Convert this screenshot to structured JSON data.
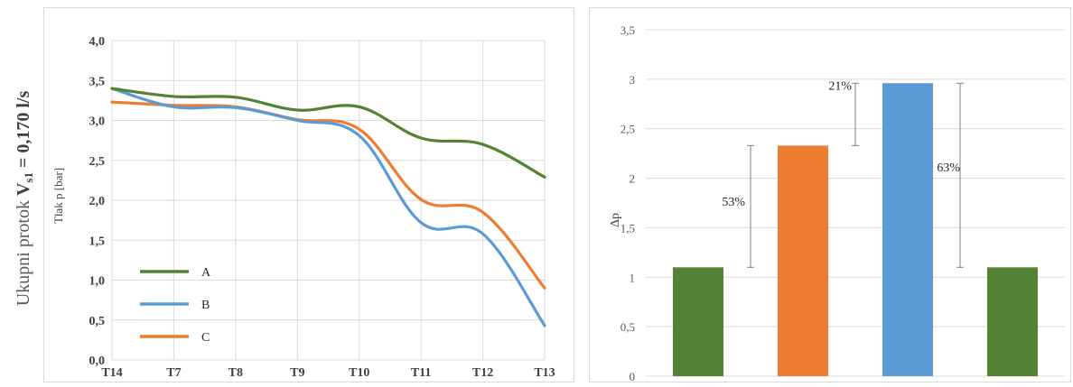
{
  "side_label": {
    "prefix": "Ukupni protok ",
    "symbol": "V",
    "subscript": "s1",
    "suffix": " = 0,170 l/s"
  },
  "colors": {
    "A": "#548235",
    "B": "#5b9bd5",
    "C": "#ed7d31",
    "grid": "#d9d9d9",
    "axis_text": "#404040",
    "bar_green": "#548235",
    "bar_orange": "#ed7d31",
    "bar_blue": "#5b9bd5"
  },
  "chart_data": [
    {
      "type": "line",
      "x": [
        "T14",
        "T7",
        "T8",
        "T9",
        "T10",
        "T11",
        "T12",
        "T13"
      ],
      "ylabel": "Tlak p [bar]",
      "ylim": [
        0,
        4
      ],
      "yticks": [
        "0,0",
        "0,5",
        "1,0",
        "1,5",
        "2,0",
        "2,5",
        "3,0",
        "3,5",
        "4,0"
      ],
      "grid": true,
      "legend_position": "bottom-left",
      "series": [
        {
          "name": "A",
          "values": [
            3.4,
            3.3,
            3.29,
            3.13,
            3.17,
            2.78,
            2.7,
            2.29
          ]
        },
        {
          "name": "B",
          "values": [
            3.4,
            3.17,
            3.16,
            3.0,
            2.81,
            1.72,
            1.58,
            0.43
          ]
        },
        {
          "name": "C",
          "values": [
            3.23,
            3.19,
            3.17,
            3.01,
            2.89,
            2.01,
            1.85,
            0.9
          ]
        }
      ]
    },
    {
      "type": "bar",
      "categories": [
        "",
        "",
        "",
        ""
      ],
      "values": [
        1.1,
        2.33,
        2.96,
        1.1
      ],
      "ylabel": "Δp",
      "ylim": [
        0,
        3.5
      ],
      "yticks": [
        "0",
        "0,5",
        "1",
        "1,5",
        "2",
        "2,5",
        "3",
        "3,5"
      ],
      "grid": true,
      "annotations": [
        {
          "label": "53%",
          "from": 1.1,
          "to": 2.33
        },
        {
          "label": "21%",
          "from": 2.33,
          "to": 2.96
        },
        {
          "label": "63%",
          "from": 1.1,
          "to": 2.96
        }
      ]
    }
  ]
}
